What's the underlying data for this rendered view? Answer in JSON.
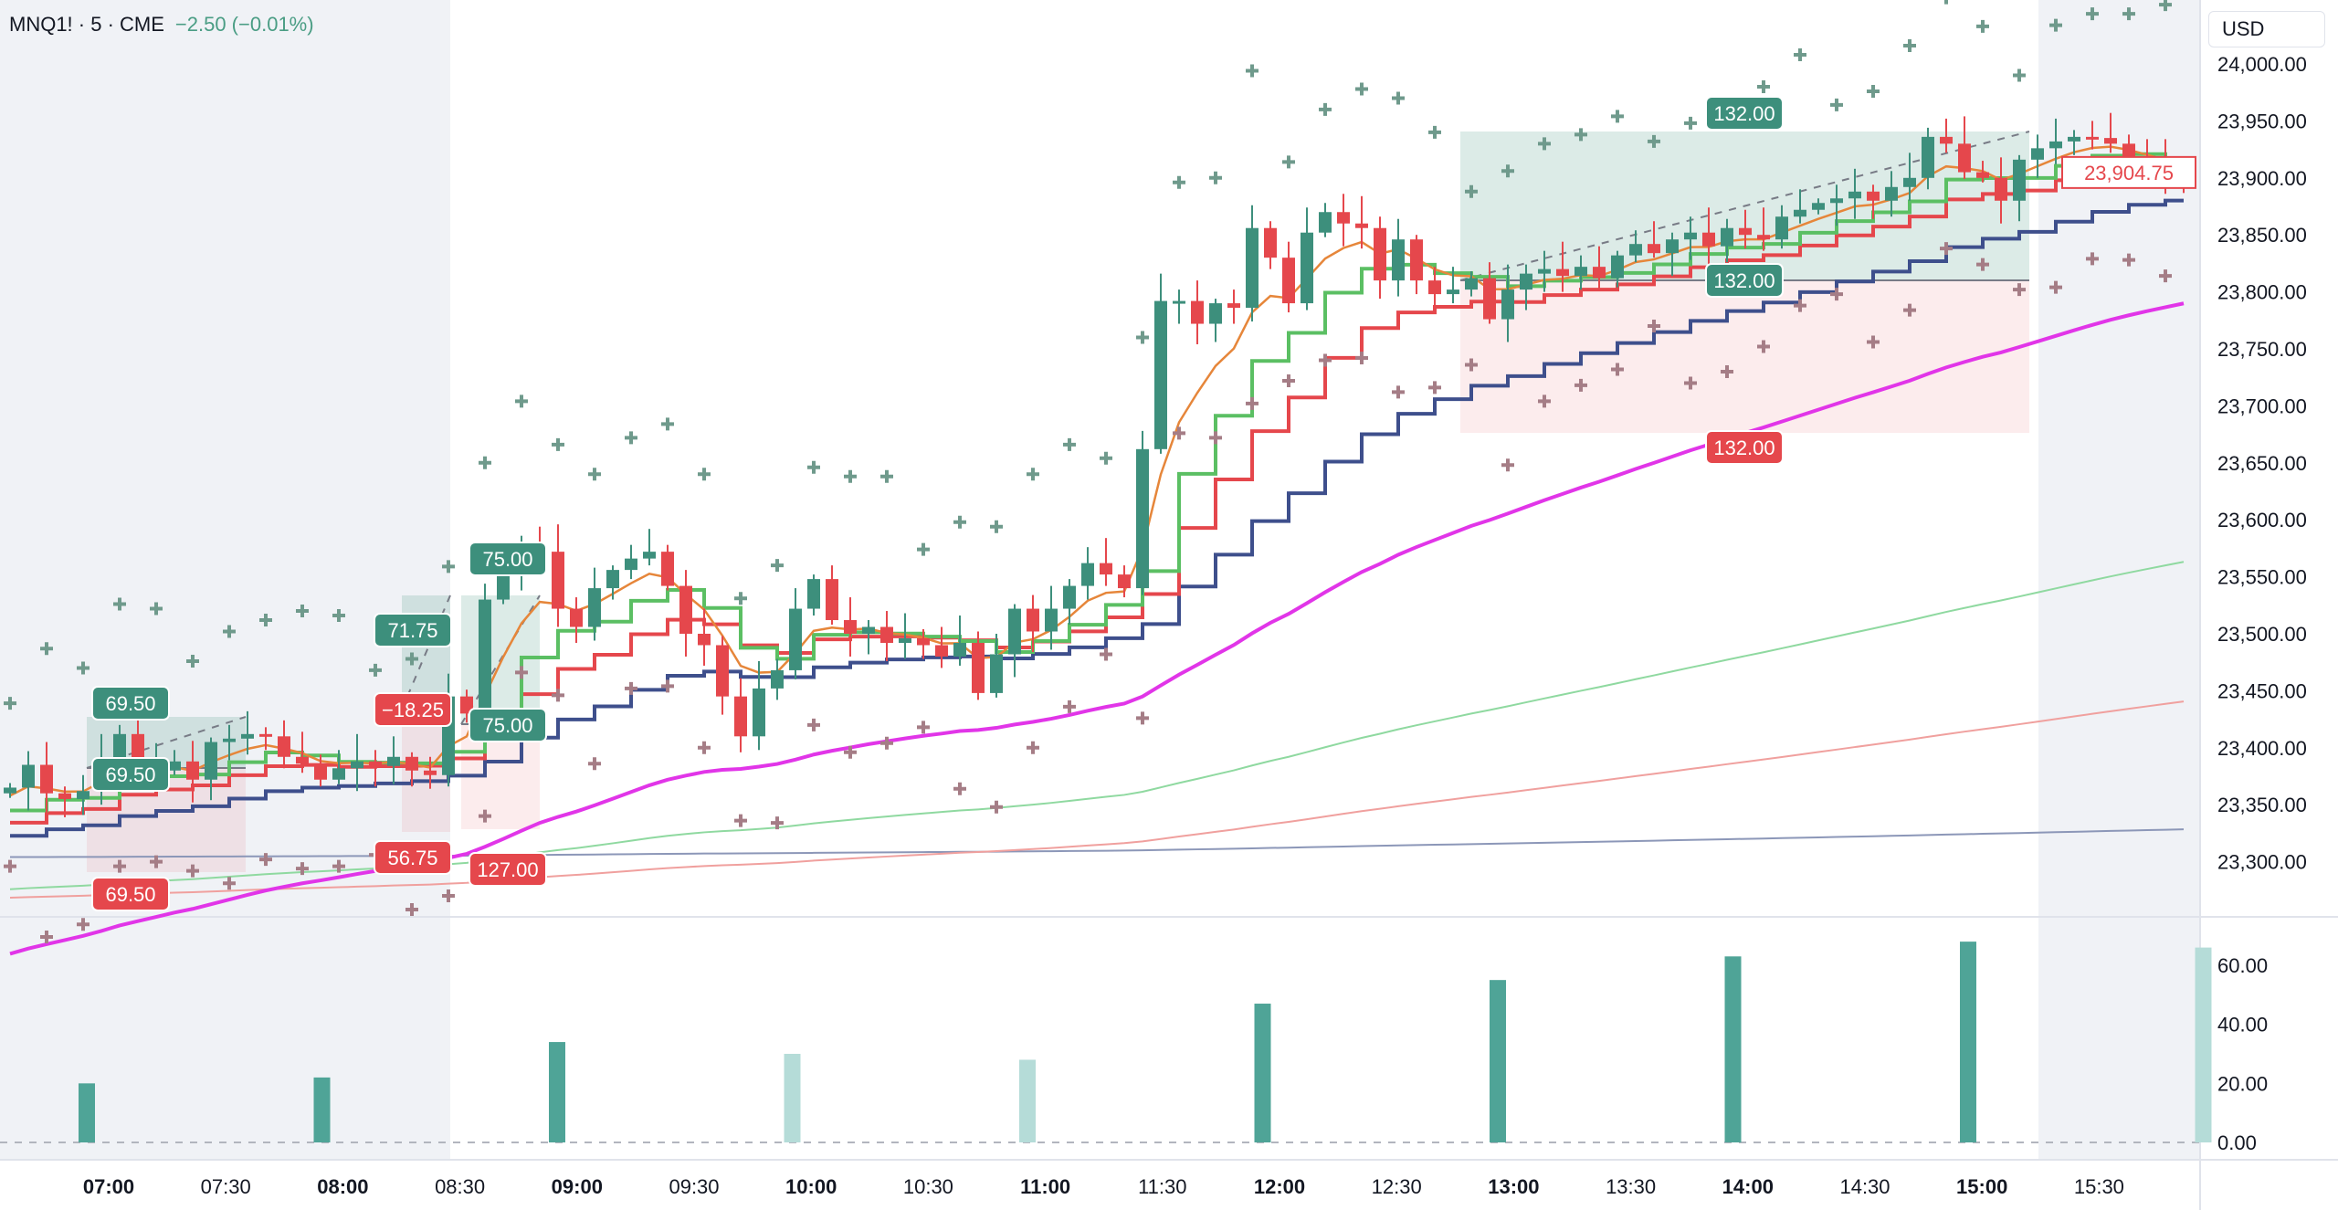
{
  "header": {
    "symbol": "MNQ1! · 5 · CME",
    "change": "−2.50 (−0.01%)",
    "currency": "USD"
  },
  "colors": {
    "up": "#3d8f7c",
    "down": "#e5474c",
    "ema_fast": "#e6863a",
    "step_green": "#5bbf63",
    "step_red": "#e5474c",
    "step_blue": "#3e4f8c",
    "vwap": "#e135e8",
    "session_bg": "#f0f2f6"
  },
  "chart_data": {
    "type": "candlestick",
    "title": "MNQ1! 5-minute",
    "ylim": [
      23250,
      24030
    ],
    "price_ticks": [
      "24,000.00",
      "23,950.00",
      "23,900.00",
      "23,850.00",
      "23,800.00",
      "23,750.00",
      "23,700.00",
      "23,650.00",
      "23,600.00",
      "23,550.00",
      "23,500.00",
      "23,450.00",
      "23,400.00",
      "23,350.00",
      "23,300.00"
    ],
    "price_tick_values": [
      24000,
      23950,
      23900,
      23850,
      23800,
      23750,
      23700,
      23650,
      23600,
      23550,
      23500,
      23450,
      23400,
      23350,
      23300
    ],
    "last_price": "23,904.75",
    "last_price_value": 23904.75,
    "time_ticks": [
      {
        "label": "07:00",
        "bold": true
      },
      {
        "label": "07:30",
        "bold": false
      },
      {
        "label": "08:00",
        "bold": true
      },
      {
        "label": "08:30",
        "bold": false
      },
      {
        "label": "09:00",
        "bold": true
      },
      {
        "label": "09:30",
        "bold": false
      },
      {
        "label": "10:00",
        "bold": true
      },
      {
        "label": "10:30",
        "bold": false
      },
      {
        "label": "11:00",
        "bold": true
      },
      {
        "label": "11:30",
        "bold": false
      },
      {
        "label": "12:00",
        "bold": true
      },
      {
        "label": "12:30",
        "bold": false
      },
      {
        "label": "13:00",
        "bold": true
      },
      {
        "label": "13:30",
        "bold": false
      },
      {
        "label": "14:00",
        "bold": true
      },
      {
        "label": "14:30",
        "bold": false
      },
      {
        "label": "15:00",
        "bold": true
      },
      {
        "label": "15:30",
        "bold": false
      }
    ],
    "close": [
      23365,
      23385,
      23360,
      23355,
      23362,
      23390,
      23412,
      23378,
      23380,
      23388,
      23372,
      23405,
      23408,
      23412,
      23410,
      23392,
      23386,
      23372,
      23382,
      23388,
      23384,
      23392,
      23380,
      23376,
      23445,
      23430,
      23530,
      23558,
      23578,
      23572,
      23522,
      23506,
      23540,
      23556,
      23566,
      23572,
      23542,
      23500,
      23490,
      23445,
      23410,
      23452,
      23468,
      23522,
      23548,
      23512,
      23500,
      23506,
      23492,
      23496,
      23490,
      23480,
      23492,
      23448,
      23482,
      23522,
      23502,
      23522,
      23542,
      23562,
      23552,
      23540,
      23662,
      23792,
      23792,
      23772,
      23790,
      23786,
      23856,
      23830,
      23790,
      23852,
      23870,
      23860,
      23856,
      23810,
      23846,
      23810,
      23798,
      23802,
      23812,
      23776,
      23802,
      23816,
      23820,
      23814,
      23822,
      23812,
      23832,
      23842,
      23834,
      23846,
      23852,
      23840,
      23856,
      23850,
      23846,
      23866,
      23872,
      23878,
      23882,
      23888,
      23880,
      23892,
      23900,
      23936,
      23930,
      23905,
      23900,
      23880,
      23916,
      23926,
      23932,
      23936,
      23935,
      23930,
      23918,
      23910,
      23906,
      23904.75
    ],
    "volume": {
      "ticks": [
        "60.00",
        "40.00",
        "20.00",
        "0.00"
      ],
      "tick_values": [
        60,
        40,
        20,
        0
      ],
      "ylim": [
        0,
        70
      ],
      "bars": [
        {
          "time": "06:50",
          "value": 20,
          "light": false
        },
        {
          "time": "07:50",
          "value": 22,
          "light": false
        },
        {
          "time": "08:50",
          "value": 34,
          "light": false
        },
        {
          "time": "09:50",
          "value": 30,
          "light": true
        },
        {
          "time": "10:50",
          "value": 28,
          "light": true
        },
        {
          "time": "11:50",
          "value": 47,
          "light": false
        },
        {
          "time": "12:50",
          "value": 55,
          "light": false
        },
        {
          "time": "13:50",
          "value": 63,
          "light": false
        },
        {
          "time": "14:50",
          "value": 68,
          "light": false
        },
        {
          "time": "15:50",
          "value": 66,
          "light": true
        }
      ]
    },
    "positions": [
      {
        "target": "69.50",
        "entry": "69.50",
        "stop": "69.50",
        "stop_negative": false
      },
      {
        "target": "71.75",
        "entry": "−18.25",
        "stop": "56.75",
        "stop_negative": true
      },
      {
        "target": "75.00",
        "entry": "75.00",
        "stop": "127.00",
        "stop_negative": false
      },
      {
        "target": "132.00",
        "entry": "132.00",
        "stop": "132.00",
        "stop_negative": false
      }
    ]
  }
}
